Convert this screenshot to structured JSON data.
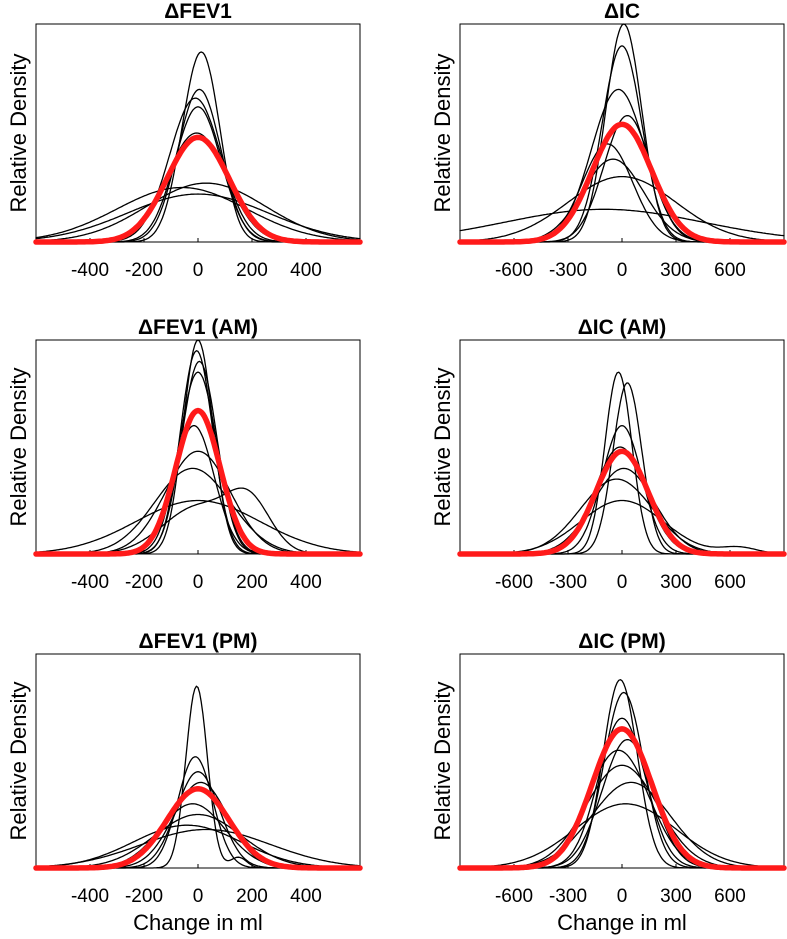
{
  "figure": {
    "x_axis_label": "Change in ml",
    "y_axis_label": "Relative Density"
  },
  "colors": {
    "subject_curves": "#000000",
    "pooled_curve": "#ff1a1a"
  },
  "chart_data": [
    {
      "type": "line",
      "title": "ΔFEV1",
      "xlabel": "",
      "ylabel": "Relative Density",
      "xlim": [
        -600,
        600
      ],
      "ylim": [
        0,
        1.0
      ],
      "xticks": [
        -400,
        -200,
        0,
        200,
        400
      ],
      "tick_labels": [
        "-400",
        "-200",
        "0",
        "200",
        "400"
      ],
      "series": [
        {
          "name": "subject",
          "components": [
            [
              0.52,
              -15,
              65
            ],
            [
              0.44,
              40,
              60
            ]
          ]
        },
        {
          "name": "subject",
          "components": [
            [
              0.62,
              0,
              85
            ]
          ]
        },
        {
          "name": "subject",
          "components": [
            [
              0.66,
              -10,
              95
            ]
          ]
        },
        {
          "name": "subject",
          "components": [
            [
              0.7,
              5,
              80
            ]
          ]
        },
        {
          "name": "subject",
          "components": [
            [
              0.5,
              -5,
              110
            ]
          ]
        },
        {
          "name": "subject",
          "components": [
            [
              0.25,
              -60,
              240
            ]
          ]
        },
        {
          "name": "subject",
          "components": [
            [
              0.27,
              30,
              220
            ]
          ]
        },
        {
          "name": "subject",
          "components": [
            [
              0.22,
              0,
              260
            ]
          ]
        },
        {
          "name": "pooled",
          "components": [
            [
              0.48,
              0,
              115
            ]
          ]
        }
      ]
    },
    {
      "type": "line",
      "title": "ΔIC",
      "xlabel": "",
      "ylabel": "Relative Density",
      "xlim": [
        -900,
        900
      ],
      "ylim": [
        0,
        1.0
      ],
      "xticks": [
        -600,
        -300,
        0,
        300,
        600
      ],
      "tick_labels": [
        "-600",
        "-300",
        "0",
        "300",
        "600"
      ],
      "series": [
        {
          "name": "subject",
          "components": [
            [
              1.0,
              10,
              100
            ]
          ]
        },
        {
          "name": "subject",
          "components": [
            [
              0.9,
              0,
              110
            ]
          ]
        },
        {
          "name": "subject",
          "components": [
            [
              0.7,
              -20,
              150
            ]
          ]
        },
        {
          "name": "subject",
          "components": [
            [
              0.58,
              30,
              130
            ]
          ]
        },
        {
          "name": "subject",
          "components": [
            [
              0.45,
              -80,
              140
            ]
          ]
        },
        {
          "name": "subject",
          "components": [
            [
              0.38,
              -50,
              170
            ]
          ]
        },
        {
          "name": "subject",
          "components": [
            [
              0.3,
              0,
              300
            ]
          ]
        },
        {
          "name": "subject",
          "components": [
            [
              0.15,
              -100,
              550
            ]
          ]
        },
        {
          "name": "pooled",
          "components": [
            [
              0.54,
              0,
              165
            ]
          ]
        }
      ]
    },
    {
      "type": "line",
      "title": "ΔFEV1 (AM)",
      "xlabel": "",
      "ylabel": "Relative Density",
      "xlim": [
        -600,
        600
      ],
      "ylim": [
        0,
        1.0
      ],
      "xticks": [
        -400,
        -200,
        0,
        200,
        400
      ],
      "tick_labels": [
        "-400",
        "-200",
        "0",
        "200",
        "400"
      ],
      "series": [
        {
          "name": "subject",
          "components": [
            [
              1.0,
              0,
              55
            ]
          ]
        },
        {
          "name": "subject",
          "components": [
            [
              0.95,
              -5,
              60
            ]
          ]
        },
        {
          "name": "subject",
          "components": [
            [
              0.9,
              5,
              65
            ]
          ]
        },
        {
          "name": "subject",
          "components": [
            [
              0.85,
              0,
              70
            ]
          ]
        },
        {
          "name": "subject",
          "components": [
            [
              0.6,
              -15,
              75
            ]
          ]
        },
        {
          "name": "subject",
          "components": [
            [
              0.48,
              0,
              120
            ]
          ]
        },
        {
          "name": "subject",
          "components": [
            [
              0.4,
              -20,
              140
            ]
          ]
        },
        {
          "name": "subject",
          "components": [
            [
              0.22,
              0,
              130
            ],
            [
              0.22,
              190,
              80
            ]
          ]
        },
        {
          "name": "subject",
          "components": [
            [
              0.25,
              0,
              230
            ]
          ]
        },
        {
          "name": "pooled",
          "components": [
            [
              0.67,
              0,
              82
            ]
          ]
        }
      ]
    },
    {
      "type": "line",
      "title": "ΔIC (AM)",
      "xlabel": "",
      "ylabel": "Relative Density",
      "xlim": [
        -900,
        900
      ],
      "ylim": [
        0,
        1.0
      ],
      "xticks": [
        -600,
        -300,
        0,
        300,
        600
      ],
      "tick_labels": [
        "-600",
        "-300",
        "0",
        "300",
        "600"
      ],
      "series": [
        {
          "name": "subject",
          "components": [
            [
              0.85,
              -20,
              75
            ]
          ]
        },
        {
          "name": "subject",
          "components": [
            [
              0.8,
              30,
              80
            ]
          ]
        },
        {
          "name": "subject",
          "components": [
            [
              0.6,
              0,
              110
            ]
          ]
        },
        {
          "name": "subject",
          "components": [
            [
              0.5,
              -10,
              140
            ]
          ]
        },
        {
          "name": "subject",
          "components": [
            [
              0.4,
              10,
              170
            ]
          ]
        },
        {
          "name": "subject",
          "components": [
            [
              0.35,
              -30,
              200
            ]
          ]
        },
        {
          "name": "subject",
          "components": [
            [
              0.25,
              0,
              230
            ],
            [
              0.03,
              650,
              100
            ]
          ]
        },
        {
          "name": "pooled",
          "components": [
            [
              0.48,
              0,
              145
            ]
          ]
        }
      ]
    },
    {
      "type": "line",
      "title": "ΔFEV1 (PM)",
      "xlabel": "Change in ml",
      "ylabel": "Relative Density",
      "xlim": [
        -600,
        600
      ],
      "ylim": [
        0,
        1.0
      ],
      "xticks": [
        -400,
        -200,
        0,
        200,
        400
      ],
      "tick_labels": [
        "-400",
        "-200",
        "0",
        "200",
        "400"
      ],
      "series": [
        {
          "name": "subject",
          "components": [
            [
              0.85,
              -5,
              40
            ],
            [
              0.05,
              150,
              30
            ]
          ]
        },
        {
          "name": "subject",
          "components": [
            [
              0.52,
              -10,
              65
            ]
          ]
        },
        {
          "name": "subject",
          "components": [
            [
              0.45,
              0,
              80
            ]
          ]
        },
        {
          "name": "subject",
          "components": [
            [
              0.4,
              10,
              100
            ]
          ]
        },
        {
          "name": "subject",
          "components": [
            [
              0.3,
              -20,
              120
            ]
          ]
        },
        {
          "name": "subject",
          "components": [
            [
              0.25,
              0,
              160
            ]
          ]
        },
        {
          "name": "subject",
          "components": [
            [
              0.2,
              -40,
              200
            ]
          ]
        },
        {
          "name": "subject",
          "components": [
            [
              0.18,
              30,
              240
            ]
          ]
        },
        {
          "name": "pooled",
          "components": [
            [
              0.37,
              0,
              115
            ]
          ]
        }
      ]
    },
    {
      "type": "line",
      "title": "ΔIC (PM)",
      "xlabel": "Change in ml",
      "ylabel": "Relative Density",
      "xlim": [
        -900,
        900
      ],
      "ylim": [
        0,
        1.0
      ],
      "xticks": [
        -600,
        -300,
        0,
        300,
        600
      ],
      "tick_labels": [
        "-600",
        "-300",
        "0",
        "300",
        "600"
      ],
      "series": [
        {
          "name": "subject",
          "components": [
            [
              0.88,
              -10,
              95
            ]
          ]
        },
        {
          "name": "subject",
          "components": [
            [
              0.82,
              10,
              110
            ]
          ]
        },
        {
          "name": "subject",
          "components": [
            [
              0.7,
              0,
              130
            ]
          ]
        },
        {
          "name": "subject",
          "components": [
            [
              0.6,
              30,
              140
            ]
          ]
        },
        {
          "name": "subject",
          "components": [
            [
              0.48,
              0,
              200
            ]
          ]
        },
        {
          "name": "subject",
          "components": [
            [
              0.4,
              50,
              220
            ]
          ]
        },
        {
          "name": "subject",
          "components": [
            [
              0.3,
              20,
              280
            ]
          ]
        },
        {
          "name": "subject",
          "components": [
            [
              0.55,
              -20,
              170
            ]
          ]
        },
        {
          "name": "pooled",
          "components": [
            [
              0.65,
              0,
              165
            ]
          ]
        }
      ]
    }
  ]
}
